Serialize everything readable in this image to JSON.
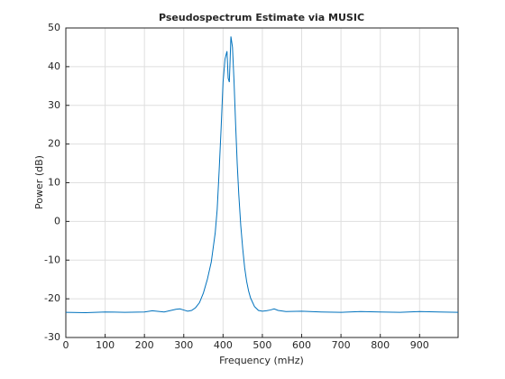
{
  "chart_data": {
    "type": "line",
    "title": "Pseudospectrum Estimate via MUSIC",
    "xlabel": "Frequency (mHz)",
    "ylabel": "Power (dB)",
    "x": [
      0,
      50,
      100,
      150,
      200,
      220,
      250,
      280,
      290,
      300,
      310,
      320,
      330,
      340,
      350,
      360,
      370,
      380,
      385,
      390,
      395,
      400,
      405,
      410,
      413,
      416,
      420,
      424,
      428,
      432,
      436,
      440,
      445,
      450,
      455,
      460,
      465,
      470,
      480,
      490,
      500,
      510,
      520,
      530,
      540,
      560,
      600,
      650,
      700,
      750,
      800,
      850,
      900,
      950,
      998
    ],
    "series": [
      {
        "color": "#0072bd",
        "values": [
          -23.5,
          -23.6,
          -23.4,
          -23.5,
          -23.4,
          -23.1,
          -23.4,
          -22.7,
          -22.6,
          -22.9,
          -23.2,
          -23.0,
          -22.3,
          -21.0,
          -18.5,
          -15.0,
          -10.5,
          -3.0,
          3.0,
          13.0,
          24.0,
          36.0,
          42.0,
          44.0,
          37.0,
          36.0,
          47.8,
          45.0,
          36.0,
          25.0,
          15.0,
          7.0,
          -1.0,
          -7.0,
          -12.0,
          -15.5,
          -18.0,
          -19.8,
          -22.0,
          -23.0,
          -23.2,
          -23.1,
          -22.9,
          -22.6,
          -23.0,
          -23.3,
          -23.2,
          -23.4,
          -23.5,
          -23.3,
          -23.4,
          -23.5,
          -23.3,
          -23.4,
          -23.5
        ]
      }
    ],
    "xlim": [
      0,
      998
    ],
    "ylim": [
      -30,
      50
    ],
    "xticks": [
      0,
      100,
      200,
      300,
      400,
      500,
      600,
      700,
      800,
      900
    ],
    "yticks": [
      -30,
      -20,
      -10,
      0,
      10,
      20,
      30,
      40,
      50
    ],
    "grid": true
  }
}
